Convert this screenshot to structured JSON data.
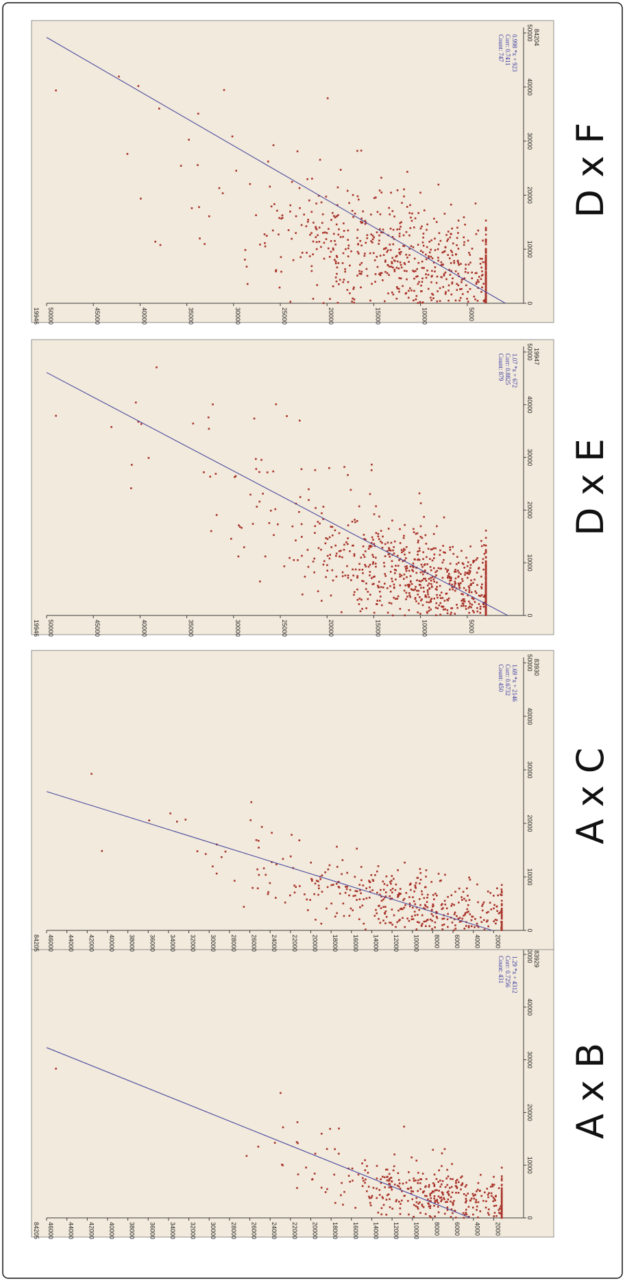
{
  "chart_data": [
    {
      "type": "scatter",
      "label": "A x B",
      "y_corner_label": "84205",
      "x_corner_label": "83929",
      "xlim": [
        0,
        50000
      ],
      "ylim": [
        0,
        46000
      ],
      "x_ticks": [
        "0",
        "10000",
        "20000",
        "30000",
        "40000",
        "50000"
      ],
      "y_ticks": [
        "2000",
        "4000",
        "6000",
        "8000",
        "10000",
        "12000",
        "14000",
        "16000",
        "18000",
        "20000",
        "22000",
        "24000",
        "26000",
        "28000",
        "30000",
        "32000",
        "34000",
        "36000",
        "38000",
        "40000",
        "42000",
        "44000",
        "46000"
      ],
      "y_tick_values": [
        2000,
        4000,
        6000,
        8000,
        10000,
        12000,
        14000,
        16000,
        18000,
        20000,
        22000,
        24000,
        26000,
        28000,
        30000,
        32000,
        34000,
        36000,
        38000,
        40000,
        42000,
        44000,
        46000
      ],
      "x_tick_values": [
        0,
        10000,
        20000,
        30000,
        40000,
        50000
      ],
      "regression": {
        "equation": "1.29 *x + 4312",
        "corr": "Corr: 0.7256",
        "count": "Count: 431",
        "slope": 1.29,
        "intercept": 4312
      },
      "cluster": {
        "count": 431,
        "x_center": 4000,
        "x_spread": 3000,
        "y_center": 7500,
        "y_spread": 5000
      }
    },
    {
      "type": "scatter",
      "label": "A x C",
      "y_corner_label": "84205",
      "x_corner_label": "83930",
      "xlim": [
        0,
        50000
      ],
      "ylim": [
        0,
        46000
      ],
      "x_ticks": [
        "0",
        "10000",
        "20000",
        "30000",
        "40000",
        "50000"
      ],
      "y_ticks": [
        "2000",
        "4000",
        "6000",
        "8000",
        "10000",
        "12000",
        "14000",
        "16000",
        "18000",
        "20000",
        "22000",
        "24000",
        "26000",
        "28000",
        "30000",
        "32000",
        "34000",
        "36000",
        "38000",
        "40000",
        "42000",
        "44000",
        "46000"
      ],
      "y_tick_values": [
        2000,
        4000,
        6000,
        8000,
        10000,
        12000,
        14000,
        16000,
        18000,
        20000,
        22000,
        24000,
        26000,
        28000,
        30000,
        32000,
        34000,
        36000,
        38000,
        40000,
        42000,
        44000,
        46000
      ],
      "x_tick_values": [
        0,
        10000,
        20000,
        30000,
        40000,
        50000
      ],
      "regression": {
        "equation": "1.69 *x + 2146",
        "corr": "Corr: 0.6732",
        "count": "Count: 450",
        "slope": 1.69,
        "intercept": 2146
      },
      "cluster": {
        "count": 450,
        "x_center": 5000,
        "x_spread": 3500,
        "y_center": 9000,
        "y_spread": 6000
      }
    },
    {
      "type": "scatter",
      "label": "D x E",
      "y_corner_label": "19946",
      "x_corner_label": "19947",
      "xlim": [
        0,
        50000
      ],
      "ylim": [
        0,
        50000
      ],
      "x_ticks": [
        "0",
        "10000",
        "20000",
        "30000",
        "40000",
        "50000"
      ],
      "y_ticks": [
        "5000",
        "10000",
        "15000",
        "20000",
        "25000",
        "30000",
        "35000",
        "40000",
        "45000",
        "50000"
      ],
      "y_tick_values": [
        5000,
        10000,
        15000,
        20000,
        25000,
        30000,
        35000,
        40000,
        45000,
        50000
      ],
      "x_tick_values": [
        0,
        10000,
        20000,
        30000,
        40000,
        50000
      ],
      "regression": {
        "equation": "1.07 *x + 672",
        "corr": "Corr: 0.8825",
        "count": "Count: 879",
        "slope": 1.07,
        "intercept": 672
      },
      "cluster": {
        "count": 879,
        "x_center": 6000,
        "x_spread": 6000,
        "y_center": 7000,
        "y_spread": 7000
      }
    },
    {
      "type": "scatter",
      "label": "D x F",
      "y_corner_label": "19946",
      "x_corner_label": "84204",
      "xlim": [
        0,
        50000
      ],
      "ylim": [
        0,
        50000
      ],
      "x_ticks": [
        "0",
        "10000",
        "20000",
        "30000",
        "40000",
        "50000"
      ],
      "y_ticks": [
        "5000",
        "10000",
        "15000",
        "20000",
        "25000",
        "30000",
        "35000",
        "40000",
        "45000",
        "50000"
      ],
      "y_tick_values": [
        5000,
        10000,
        15000,
        20000,
        25000,
        30000,
        35000,
        40000,
        45000,
        50000
      ],
      "x_tick_values": [
        0,
        10000,
        20000,
        30000,
        40000,
        50000
      ],
      "regression": {
        "equation": "0.998 *x + 923",
        "corr": "Corr: 0.7411",
        "count": "Count: 747",
        "slope": 0.998,
        "intercept": 923
      },
      "cluster": {
        "count": 747,
        "x_center": 7000,
        "x_spread": 6000,
        "y_center": 8500,
        "y_spread": 8000
      }
    }
  ],
  "colors": {
    "points": "#a8322a",
    "regression": "#4a4aa0",
    "background": "#f2eadc"
  }
}
